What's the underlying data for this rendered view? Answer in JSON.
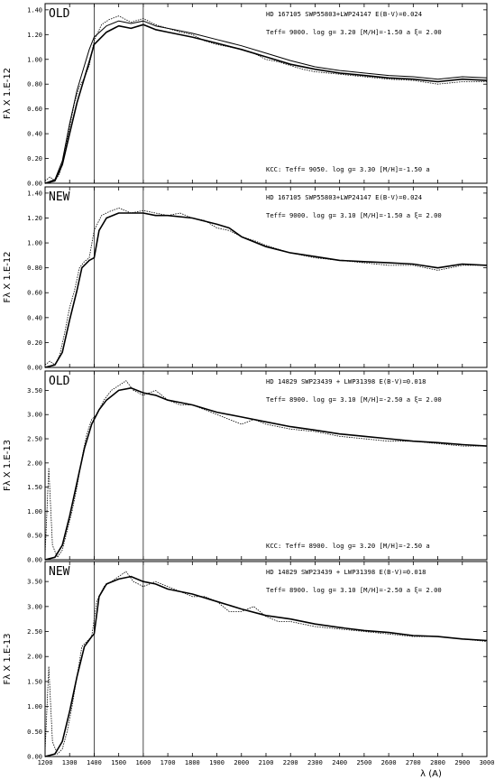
{
  "chart_data": [
    {
      "type": "line",
      "panel_label": "OLD",
      "ylabel": "Fλ X   1.E-12",
      "annotation_line1": "HD 167105   SWP55803+LWP24147  E(B-V)=0.024",
      "annotation_line2": "Teff=  9000.  log g= 3.20 [M/H]=-1.50 a  ξ= 2.00",
      "kcc_text": "KCC: Teff=  9050. log g= 3.30 [M/H]=-1.50 a",
      "ylim": [
        0,
        1.45
      ],
      "yticks": [
        "0.00",
        "0.20",
        "0.40",
        "0.60",
        "0.80",
        "1.00",
        "1.20",
        "1.40"
      ],
      "ytick_values": [
        0,
        0.2,
        0.4,
        0.6,
        0.8,
        1.0,
        1.2,
        1.4
      ],
      "series": [
        {
          "style": "dotted",
          "x": [
            1200,
            1220,
            1240,
            1260,
            1280,
            1300,
            1320,
            1340,
            1360,
            1380,
            1400,
            1430,
            1460,
            1500,
            1550,
            1600,
            1650,
            1700,
            1750,
            1800,
            1850,
            1900,
            1950,
            2000,
            2050,
            2100,
            2150,
            2200,
            2250,
            2300,
            2400,
            2500,
            2600,
            2700,
            2800,
            2900,
            3000
          ],
          "y": [
            0.02,
            0.05,
            0.02,
            0.08,
            0.25,
            0.45,
            0.65,
            0.78,
            0.85,
            0.95,
            1.15,
            1.28,
            1.32,
            1.35,
            1.3,
            1.33,
            1.28,
            1.25,
            1.22,
            1.2,
            1.15,
            1.12,
            1.1,
            1.08,
            1.05,
            1.0,
            0.98,
            0.95,
            0.92,
            0.9,
            0.88,
            0.86,
            0.84,
            0.83,
            0.8,
            0.82,
            0.82
          ]
        },
        {
          "style": "solid",
          "x": [
            1200,
            1240,
            1270,
            1300,
            1330,
            1360,
            1380,
            1400,
            1450,
            1500,
            1550,
            1600,
            1650,
            1700,
            1800,
            1900,
            2000,
            2100,
            2200,
            2300,
            2400,
            2500,
            2600,
            2700,
            2800,
            2900,
            3000
          ],
          "y": [
            0.0,
            0.02,
            0.15,
            0.4,
            0.65,
            0.85,
            0.98,
            1.12,
            1.22,
            1.27,
            1.25,
            1.28,
            1.24,
            1.22,
            1.18,
            1.13,
            1.08,
            1.02,
            0.96,
            0.92,
            0.89,
            0.87,
            0.85,
            0.84,
            0.82,
            0.84,
            0.83
          ]
        },
        {
          "style": "solid",
          "x": [
            1200,
            1240,
            1270,
            1300,
            1330,
            1360,
            1380,
            1400,
            1450,
            1500,
            1550,
            1600,
            1650,
            1700,
            1800,
            1900,
            2000,
            2100,
            2200,
            2300,
            2400,
            2500,
            2600,
            2700,
            2800,
            2900,
            3000
          ],
          "y": [
            0.0,
            0.03,
            0.18,
            0.48,
            0.75,
            0.95,
            1.08,
            1.18,
            1.27,
            1.31,
            1.29,
            1.31,
            1.27,
            1.25,
            1.21,
            1.16,
            1.11,
            1.05,
            0.99,
            0.94,
            0.91,
            0.89,
            0.87,
            0.86,
            0.84,
            0.86,
            0.85
          ]
        }
      ]
    },
    {
      "type": "line",
      "panel_label": "NEW",
      "ylabel": "Fλ X   1.E-12",
      "annotation_line1": "HD 167105   SWP55803+LWP24147  E(B-V)=0.024",
      "annotation_line2": "Teff=  9000.  log g= 3.10 [M/H]=-1.50 a  ξ= 2.00",
      "kcc_text": "",
      "ylim": [
        0,
        1.45
      ],
      "yticks": [
        "0.00",
        "0.20",
        "0.40",
        "0.60",
        "0.80",
        "1.00",
        "1.20",
        "1.40"
      ],
      "ytick_values": [
        0,
        0.2,
        0.4,
        0.6,
        0.8,
        1.0,
        1.2,
        1.4
      ],
      "series": [
        {
          "style": "dotted",
          "x": [
            1200,
            1220,
            1240,
            1260,
            1280,
            1300,
            1320,
            1340,
            1360,
            1380,
            1400,
            1430,
            1460,
            1500,
            1550,
            1600,
            1650,
            1700,
            1750,
            1800,
            1850,
            1900,
            1950,
            2000,
            2050,
            2100,
            2150,
            2200,
            2250,
            2300,
            2400,
            2500,
            2600,
            2700,
            2800,
            2900,
            3000
          ],
          "y": [
            0.02,
            0.05,
            0.02,
            0.1,
            0.28,
            0.48,
            0.62,
            0.8,
            0.85,
            0.88,
            1.1,
            1.22,
            1.25,
            1.28,
            1.24,
            1.26,
            1.24,
            1.22,
            1.24,
            1.2,
            1.18,
            1.12,
            1.1,
            1.05,
            1.02,
            0.98,
            0.95,
            0.92,
            0.9,
            0.88,
            0.86,
            0.84,
            0.82,
            0.82,
            0.78,
            0.82,
            0.82
          ]
        },
        {
          "style": "solid",
          "x": [
            1200,
            1240,
            1270,
            1300,
            1330,
            1350,
            1380,
            1400,
            1420,
            1450,
            1500,
            1550,
            1600,
            1650,
            1700,
            1800,
            1900,
            1950,
            2000,
            2100,
            2200,
            2300,
            2400,
            2500,
            2600,
            2700,
            2800,
            2900,
            3000
          ],
          "y": [
            0.0,
            0.02,
            0.12,
            0.38,
            0.62,
            0.8,
            0.86,
            0.88,
            1.1,
            1.2,
            1.24,
            1.24,
            1.24,
            1.22,
            1.22,
            1.2,
            1.15,
            1.12,
            1.05,
            0.97,
            0.92,
            0.89,
            0.86,
            0.85,
            0.84,
            0.83,
            0.8,
            0.83,
            0.82
          ]
        }
      ]
    },
    {
      "type": "line",
      "panel_label": "OLD",
      "ylabel": "Fλ X   1.E-13",
      "annotation_line1": "HD 14829   SWP23439 + LWP31398  E(B-V)=0.018",
      "annotation_line2": "Teff=  8900.  log g= 3.10 [M/H]=-2.50 a  ξ= 2.00",
      "kcc_text": "KCC: Teff=  8900. log g= 3.20 [M/H]=-2.50 a",
      "ylim": [
        0,
        3.9
      ],
      "yticks": [
        "0.00",
        "0.50",
        "1.00",
        "1.50",
        "2.00",
        "2.50",
        "3.00",
        "3.50"
      ],
      "ytick_values": [
        0,
        0.5,
        1.0,
        1.5,
        2.0,
        2.5,
        3.0,
        3.5
      ],
      "series": [
        {
          "style": "dotted",
          "x": [
            1200,
            1215,
            1230,
            1250,
            1270,
            1290,
            1310,
            1330,
            1350,
            1370,
            1390,
            1410,
            1440,
            1470,
            1500,
            1530,
            1560,
            1600,
            1650,
            1700,
            1750,
            1800,
            1850,
            1900,
            1950,
            2000,
            2050,
            2100,
            2150,
            2200,
            2300,
            2400,
            2500,
            2600,
            2700,
            2800,
            2900,
            3000
          ],
          "y": [
            0.1,
            1.9,
            0.3,
            0.05,
            0.2,
            0.6,
            1.0,
            1.5,
            2.1,
            2.6,
            2.9,
            3.0,
            3.3,
            3.5,
            3.6,
            3.7,
            3.5,
            3.4,
            3.5,
            3.3,
            3.2,
            3.2,
            3.1,
            3.0,
            2.9,
            2.8,
            2.9,
            2.8,
            2.75,
            2.7,
            2.65,
            2.55,
            2.5,
            2.45,
            2.45,
            2.4,
            2.35,
            2.35
          ]
        },
        {
          "style": "solid",
          "x": [
            1200,
            1240,
            1270,
            1300,
            1330,
            1360,
            1390,
            1420,
            1450,
            1500,
            1550,
            1600,
            1650,
            1700,
            1800,
            1900,
            2000,
            2100,
            2200,
            2300,
            2400,
            2500,
            2600,
            2700,
            2800,
            2900,
            3000
          ],
          "y": [
            0.0,
            0.05,
            0.3,
            0.9,
            1.6,
            2.3,
            2.8,
            3.1,
            3.3,
            3.5,
            3.55,
            3.45,
            3.4,
            3.3,
            3.2,
            3.05,
            2.95,
            2.85,
            2.75,
            2.68,
            2.6,
            2.55,
            2.5,
            2.45,
            2.42,
            2.38,
            2.35
          ]
        }
      ]
    },
    {
      "type": "line",
      "panel_label": "NEW",
      "ylabel": "Fλ X   1.E-13",
      "annotation_line1": "HD 14829   SWP23439 + LWP31398  E(B-V)=0.018",
      "annotation_line2": "Teff=  8900.  log g= 3.10 [M/H]=-2.50 a  ξ= 2.00",
      "kcc_text": "",
      "ylim": [
        0,
        3.9
      ],
      "yticks": [
        "0.00",
        "0.50",
        "1.00",
        "1.50",
        "2.00",
        "2.50",
        "3.00",
        "3.50"
      ],
      "ytick_values": [
        0,
        0.5,
        1.0,
        1.5,
        2.0,
        2.5,
        3.0,
        3.5
      ],
      "series": [
        {
          "style": "dotted",
          "x": [
            1200,
            1215,
            1230,
            1250,
            1270,
            1290,
            1310,
            1330,
            1350,
            1370,
            1390,
            1410,
            1440,
            1470,
            1500,
            1530,
            1560,
            1600,
            1650,
            1700,
            1750,
            1800,
            1850,
            1900,
            1950,
            2000,
            2050,
            2100,
            2150,
            2200,
            2300,
            2400,
            2500,
            2600,
            2700,
            2800,
            2900,
            3000
          ],
          "y": [
            0.1,
            1.8,
            0.3,
            0.05,
            0.15,
            0.5,
            1.0,
            1.6,
            2.2,
            2.3,
            2.4,
            3.1,
            3.4,
            3.5,
            3.6,
            3.7,
            3.5,
            3.4,
            3.5,
            3.4,
            3.3,
            3.2,
            3.2,
            3.1,
            2.9,
            2.9,
            3.0,
            2.8,
            2.7,
            2.7,
            2.6,
            2.55,
            2.5,
            2.45,
            2.4,
            2.4,
            2.35,
            2.3
          ]
        },
        {
          "style": "solid",
          "x": [
            1200,
            1240,
            1270,
            1300,
            1330,
            1360,
            1390,
            1400,
            1420,
            1450,
            1500,
            1550,
            1600,
            1650,
            1700,
            1800,
            1900,
            2000,
            2100,
            2200,
            2300,
            2400,
            2500,
            2600,
            2700,
            2800,
            2900,
            3000
          ],
          "y": [
            0.0,
            0.05,
            0.3,
            0.9,
            1.6,
            2.2,
            2.4,
            2.45,
            3.2,
            3.45,
            3.55,
            3.6,
            3.5,
            3.45,
            3.35,
            3.25,
            3.1,
            2.95,
            2.82,
            2.75,
            2.65,
            2.58,
            2.52,
            2.48,
            2.42,
            2.4,
            2.35,
            2.32
          ]
        }
      ]
    }
  ],
  "shared_x": {
    "xlim": [
      1200,
      3000
    ],
    "xticks": [
      "1200",
      "1300",
      "1400",
      "1500",
      "1600",
      "1700",
      "1800",
      "1900",
      "2000",
      "2100",
      "2200",
      "2300",
      "2400",
      "2500",
      "2600",
      "2700",
      "2800",
      "2900",
      "3000"
    ],
    "xtick_values": [
      1200,
      1300,
      1400,
      1500,
      1600,
      1700,
      1800,
      1900,
      2000,
      2100,
      2200,
      2300,
      2400,
      2500,
      2600,
      2700,
      2800,
      2900,
      3000
    ],
    "xlabel": "λ (A)",
    "vlines": [
      1400,
      1600
    ]
  }
}
